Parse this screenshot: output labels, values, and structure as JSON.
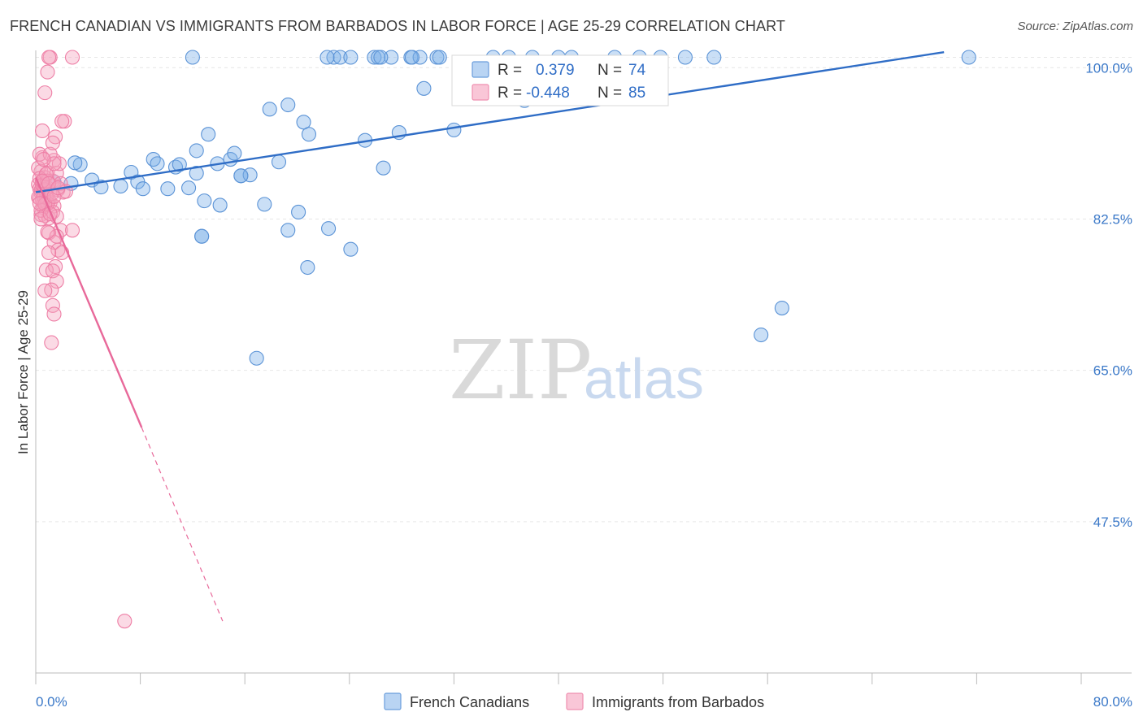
{
  "chart_data": {
    "type": "scatter",
    "title": "FRENCH CANADIAN VS IMMIGRANTS FROM BARBADOS IN LABOR FORCE | AGE 25-29 CORRELATION CHART",
    "source": "Source: ZipAtlas.com",
    "xlabel": "",
    "ylabel": "In Labor Force | Age 25-29",
    "xlim": [
      0,
      80
    ],
    "ylim": [
      30,
      102
    ],
    "x_tick_labels": [
      "0.0%",
      "80.0%"
    ],
    "y_ticks": [
      47.5,
      65.0,
      82.5,
      100.0
    ],
    "y_tick_labels": [
      "47.5%",
      "65.0%",
      "82.5%",
      "100.0%"
    ],
    "watermark": {
      "zip": "ZIP",
      "atlas": "atlas"
    },
    "legend": {
      "r_label": "R =",
      "n_label": "N =",
      "entries": [
        {
          "r": "0.379",
          "n": "74"
        },
        {
          "r": "-0.448",
          "n": "85"
        }
      ]
    },
    "series": [
      {
        "name": "French Canadians",
        "color": "#7aaee8",
        "stroke": "#5b93d6",
        "trend": {
          "x": [
            0,
            69.5
          ],
          "y": [
            85.6,
            101.8
          ],
          "color": "#2f6dc6"
        },
        "points": [
          [
            1.4,
            86.8
          ],
          [
            2.7,
            86.6
          ],
          [
            3.4,
            88.8
          ],
          [
            3.0,
            89.0
          ],
          [
            4.3,
            87.0
          ],
          [
            5.0,
            86.2
          ],
          [
            6.5,
            86.3
          ],
          [
            7.3,
            87.9
          ],
          [
            7.8,
            86.8
          ],
          [
            8.2,
            86.0
          ],
          [
            9.0,
            89.4
          ],
          [
            9.3,
            88.9
          ],
          [
            10.1,
            86.0
          ],
          [
            10.7,
            88.5
          ],
          [
            11.0,
            88.8
          ],
          [
            11.7,
            86.1
          ],
          [
            12.3,
            87.8
          ],
          [
            12.3,
            90.4
          ],
          [
            12.7,
            80.5
          ],
          [
            12.9,
            84.6
          ],
          [
            13.2,
            92.3
          ],
          [
            13.9,
            88.9
          ],
          [
            14.1,
            84.1
          ],
          [
            14.9,
            89.4
          ],
          [
            15.2,
            90.1
          ],
          [
            15.7,
            87.5
          ],
          [
            16.4,
            87.6
          ],
          [
            16.9,
            66.4
          ],
          [
            17.5,
            84.2
          ],
          [
            17.9,
            95.2
          ],
          [
            18.6,
            89.1
          ],
          [
            19.3,
            95.7
          ],
          [
            19.3,
            81.2
          ],
          [
            20.1,
            83.3
          ],
          [
            20.5,
            93.7
          ],
          [
            20.9,
            92.3
          ],
          [
            20.8,
            76.9
          ],
          [
            22.4,
            81.4
          ],
          [
            22.8,
            101.2
          ],
          [
            23.3,
            101.2
          ],
          [
            24.1,
            101.2
          ],
          [
            24.1,
            79.0
          ],
          [
            25.2,
            91.6
          ],
          [
            25.9,
            101.2
          ],
          [
            26.2,
            101.2
          ],
          [
            26.6,
            88.4
          ],
          [
            27.2,
            101.2
          ],
          [
            27.8,
            92.5
          ],
          [
            28.7,
            101.2
          ],
          [
            29.4,
            101.2
          ],
          [
            29.7,
            97.6
          ],
          [
            30.7,
            101.2
          ],
          [
            30.9,
            101.2
          ],
          [
            32.0,
            92.8
          ],
          [
            35.0,
            101.2
          ],
          [
            36.2,
            101.2
          ],
          [
            37.4,
            96.2
          ],
          [
            38.0,
            101.2
          ],
          [
            40.0,
            101.2
          ],
          [
            41.0,
            101.2
          ],
          [
            44.3,
            101.2
          ],
          [
            46.2,
            101.2
          ],
          [
            47.8,
            101.2
          ],
          [
            49.7,
            101.2
          ],
          [
            51.9,
            101.2
          ],
          [
            55.5,
            69.1
          ],
          [
            57.1,
            72.2
          ],
          [
            71.4,
            101.2
          ],
          [
            12.0,
            101.2
          ],
          [
            26.4,
            101.2
          ],
          [
            22.3,
            101.2
          ],
          [
            28.8,
            101.2
          ],
          [
            15.7,
            87.5
          ],
          [
            12.7,
            80.5
          ]
        ]
      },
      {
        "name": "Immigrants from Barbados",
        "color": "#f5a3bf",
        "stroke": "#ee7fa6",
        "trend": {
          "x": [
            0,
            8.1
          ],
          "y": [
            87.3,
            58.4
          ],
          "dash_to": [
            14.3,
            36.0
          ],
          "color": "#e8699a"
        },
        "points": [
          [
            0.2,
            86.5
          ],
          [
            0.3,
            86.0
          ],
          [
            0.4,
            85.5
          ],
          [
            0.5,
            86.8
          ],
          [
            0.3,
            84.9
          ],
          [
            0.6,
            84.4
          ],
          [
            0.4,
            88.0
          ],
          [
            0.7,
            87.3
          ],
          [
            0.5,
            89.6
          ],
          [
            0.3,
            90.0
          ],
          [
            0.2,
            88.4
          ],
          [
            0.8,
            85.2
          ],
          [
            0.9,
            86.1
          ],
          [
            1.0,
            84.7
          ],
          [
            0.6,
            83.8
          ],
          [
            0.4,
            83.0
          ],
          [
            0.7,
            82.9
          ],
          [
            1.0,
            82.6
          ],
          [
            1.1,
            84.4
          ],
          [
            0.9,
            87.8
          ],
          [
            0.5,
            92.7
          ],
          [
            0.7,
            97.1
          ],
          [
            0.9,
            99.5
          ],
          [
            1.1,
            101.2
          ],
          [
            1.0,
            101.2
          ],
          [
            1.3,
            86.9
          ],
          [
            1.4,
            89.3
          ],
          [
            1.6,
            87.8
          ],
          [
            1.5,
            92.0
          ],
          [
            2.2,
            93.8
          ],
          [
            2.0,
            93.8
          ],
          [
            1.8,
            88.9
          ],
          [
            1.7,
            85.9
          ],
          [
            1.4,
            84.0
          ],
          [
            1.3,
            83.3
          ],
          [
            1.6,
            82.8
          ],
          [
            1.9,
            81.2
          ],
          [
            2.1,
            85.6
          ],
          [
            1.9,
            86.6
          ],
          [
            2.3,
            85.7
          ],
          [
            1.0,
            80.9
          ],
          [
            1.4,
            79.8
          ],
          [
            1.7,
            78.9
          ],
          [
            1.6,
            80.5
          ],
          [
            2.0,
            78.6
          ],
          [
            2.8,
            81.2
          ],
          [
            1.5,
            77.0
          ],
          [
            1.0,
            78.6
          ],
          [
            0.8,
            76.6
          ],
          [
            1.3,
            76.5
          ],
          [
            1.6,
            75.3
          ],
          [
            1.2,
            74.3
          ],
          [
            0.7,
            74.2
          ],
          [
            1.3,
            72.5
          ],
          [
            1.4,
            71.5
          ],
          [
            1.2,
            68.2
          ],
          [
            0.4,
            85.8
          ],
          [
            0.5,
            84.7
          ],
          [
            0.6,
            86.3
          ],
          [
            0.8,
            85.0
          ],
          [
            0.3,
            87.2
          ],
          [
            0.5,
            86.4
          ],
          [
            0.9,
            84.3
          ],
          [
            0.6,
            85.1
          ],
          [
            0.4,
            83.5
          ],
          [
            0.7,
            85.9
          ],
          [
            1.2,
            85.4
          ],
          [
            0.9,
            86.9
          ],
          [
            0.8,
            87.7
          ],
          [
            1.1,
            90.0
          ],
          [
            1.3,
            91.3
          ],
          [
            0.2,
            85.0
          ],
          [
            0.5,
            86.9
          ],
          [
            0.7,
            84.2
          ],
          [
            0.4,
            82.5
          ],
          [
            0.9,
            81.0
          ],
          [
            1.1,
            83.1
          ],
          [
            1.4,
            88.9
          ],
          [
            0.6,
            89.4
          ],
          [
            2.8,
            101.2
          ],
          [
            1.4,
            85.1
          ],
          [
            0.3,
            84.3
          ],
          [
            1.0,
            86.6
          ],
          [
            6.8,
            36.0
          ],
          [
            1.7,
            86.1
          ]
        ]
      }
    ]
  },
  "bottom_legend": [
    "French Canadians",
    "Immigrants from Barbados"
  ]
}
